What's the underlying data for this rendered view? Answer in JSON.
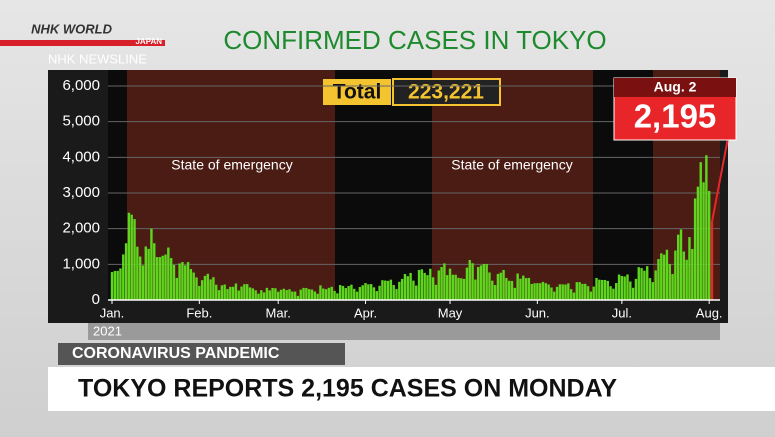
{
  "logo": {
    "brand": "NHK WORLD",
    "sub": "JAPAN",
    "program": "NHK NEWSLINE"
  },
  "chart_data": {
    "type": "bar",
    "title": "CONFIRMED CASES IN TOKYO",
    "total_label": "Total",
    "total_value": "223,221",
    "annotations": [
      "State of emergency",
      "State of emergency"
    ],
    "year": "2021",
    "color": "#5fd61e",
    "callout": {
      "label": "Aug. 2",
      "value_label": "2,195",
      "color": "#e8262a"
    },
    "xlim": [
      0,
      213
    ],
    "xticks": [
      {
        "value": 0,
        "label": "Jan."
      },
      {
        "value": 31,
        "label": "Feb."
      },
      {
        "value": 59,
        "label": "Mar."
      },
      {
        "value": 90,
        "label": "Apr."
      },
      {
        "value": 120,
        "label": "May"
      },
      {
        "value": 151,
        "label": "Jun."
      },
      {
        "value": 181,
        "label": "Jul."
      },
      {
        "value": 212,
        "label": "Aug."
      }
    ],
    "ylim": [
      0,
      6000
    ],
    "yticks": [
      0,
      {
        "value": 1000,
        "label": "1,000"
      },
      {
        "value": 2000,
        "label": "2,000"
      },
      {
        "value": 3000,
        "label": "3,000"
      },
      {
        "value": 4000,
        "label": "4,000"
      },
      {
        "value": 5000,
        "label": "5,000"
      },
      {
        "value": 6000,
        "label": "6,000"
      }
    ],
    "grid": true,
    "values": [
      783,
      814,
      816,
      884,
      1278,
      1591,
      2447,
      2392,
      2268,
      1494,
      1219,
      970,
      1502,
      1433,
      2001,
      1592,
      1204,
      1204,
      1240,
      1274,
      1471,
      1175,
      986,
      618,
      1026,
      1064,
      973,
      1064,
      868,
      769,
      633,
      393,
      556,
      676,
      734,
      577,
      639,
      429,
      276,
      412,
      434,
      307,
      369,
      371,
      463,
      266,
      378,
      445,
      445,
      353,
      327,
      272,
      178,
      275,
      213,
      340,
      270,
      337,
      329,
      232,
      287,
      316,
      279,
      301,
      237,
      237,
      116,
      290,
      340,
      335,
      304,
      293,
      239,
      175,
      409,
      323,
      303,
      342,
      370,
      256,
      187,
      420,
      394,
      335,
      392,
      430,
      313,
      234,
      364,
      414,
      475,
      440,
      446,
      355,
      249,
      399,
      555,
      545,
      537,
      570,
      421,
      306,
      510,
      591,
      729,
      667,
      759,
      543,
      405,
      843,
      861,
      759,
      697,
      876,
      635,
      425,
      828,
      925,
      1027,
      698,
      879,
      708,
      708,
      621,
      609,
      591,
      907,
      1121,
      1032,
      573,
      925,
      969,
      1010,
      1010,
      772,
      542,
      419,
      732,
      766,
      843,
      618,
      539,
      535,
      340,
      743,
      597,
      684,
      614,
      619,
      449,
      471,
      472,
      471,
      508,
      472,
      436,
      351,
      235,
      369,
      440,
      439,
      435,
      467,
      304,
      209,
      501,
      501,
      452,
      453,
      388,
      236,
      376,
      619,
      570,
      562,
      562,
      534,
      386,
      317,
      476,
      714,
      673,
      660,
      716,
      518,
      342,
      593,
      920,
      896,
      822,
      950,
      614,
      502,
      830,
      1149,
      1308,
      1271,
      1410,
      1008,
      727,
      1387,
      1832,
      1979,
      1359,
      1128,
      1763,
      1429,
      2848,
      3177,
      3865,
      3300,
      4058,
      3058,
      2195
    ]
  },
  "lower_third": {
    "tag": "CORONAVIRUS PANDEMIC",
    "headline": "TOKYO REPORTS 2,195 CASES ON MONDAY"
  }
}
